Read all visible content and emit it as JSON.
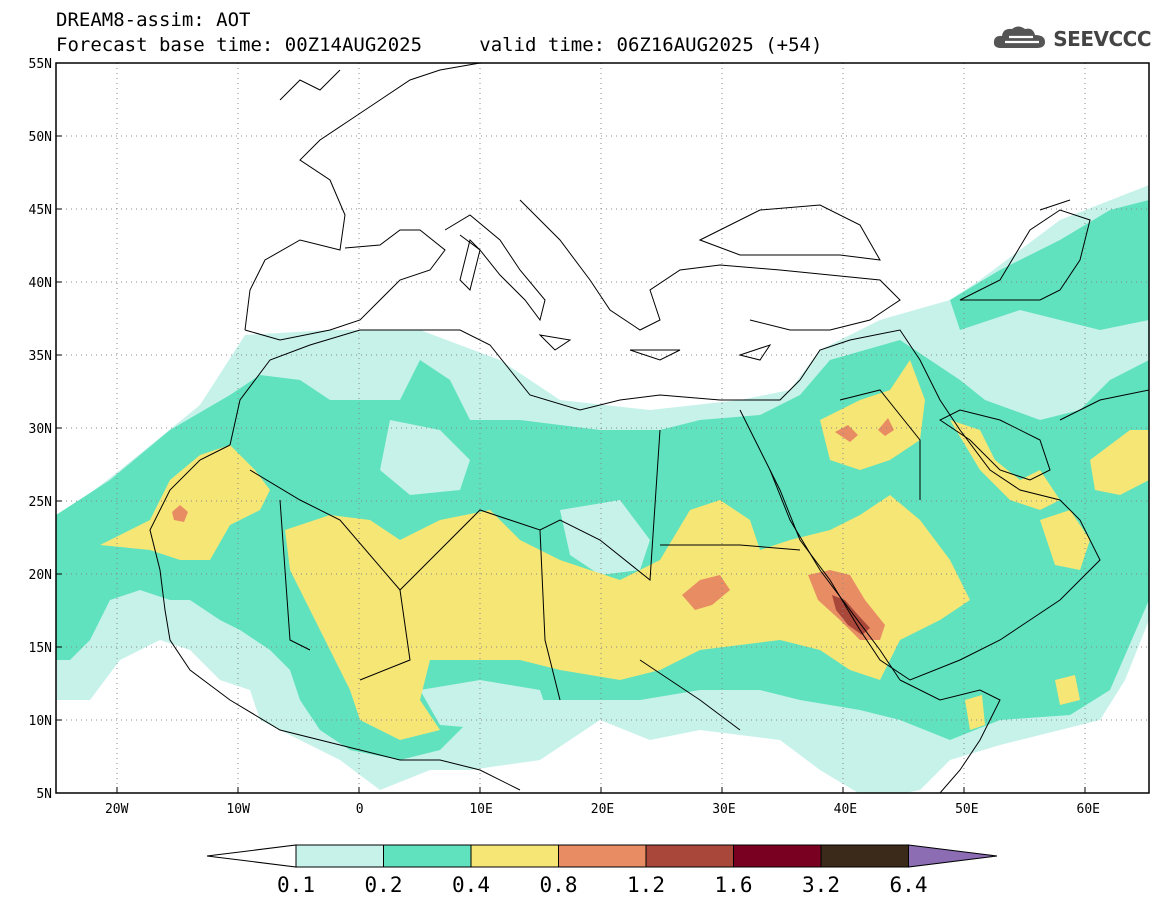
{
  "header": {
    "title": "DREAM8-assim: AOT",
    "base_time_label": "Forecast base time: 00Z14AUG2025",
    "valid_time_label": "valid time: 06Z16AUG2025 (+54)"
  },
  "logo": {
    "text": "SEEVCCC",
    "icon": "cloud-icon"
  },
  "axes": {
    "lat_labels": [
      "55N",
      "50N",
      "45N",
      "40N",
      "35N",
      "30N",
      "25N",
      "20N",
      "15N",
      "10N",
      "5N"
    ],
    "lat_values": [
      55,
      50,
      45,
      40,
      35,
      30,
      25,
      20,
      15,
      10,
      5
    ],
    "lon_labels": [
      "20W",
      "10W",
      "0",
      "10E",
      "20E",
      "30E",
      "40E",
      "50E",
      "60E"
    ],
    "lon_values": [
      -20,
      -10,
      0,
      10,
      20,
      30,
      40,
      50,
      60
    ],
    "lon_range": [
      -25,
      65
    ],
    "lat_range": [
      5,
      55
    ],
    "grid": "dotted"
  },
  "legend": {
    "labels": [
      "0.1",
      "0.2",
      "0.4",
      "0.8",
      "1.2",
      "1.6",
      "3.2",
      "6.4"
    ],
    "colors": [
      "#ffffff",
      "#c6f2ea",
      "#5fe2bd",
      "#f6e676",
      "#e88c64",
      "#a9473a",
      "#7a0022",
      "#3b2a1a",
      "#8c6db4"
    ]
  },
  "fields": {
    "aot_colors": {
      "light": "#c6f2ea",
      "green": "#5fe2bd",
      "yellow": "#f6e676",
      "orange": "#e88c64",
      "red": "#a9473a"
    }
  }
}
